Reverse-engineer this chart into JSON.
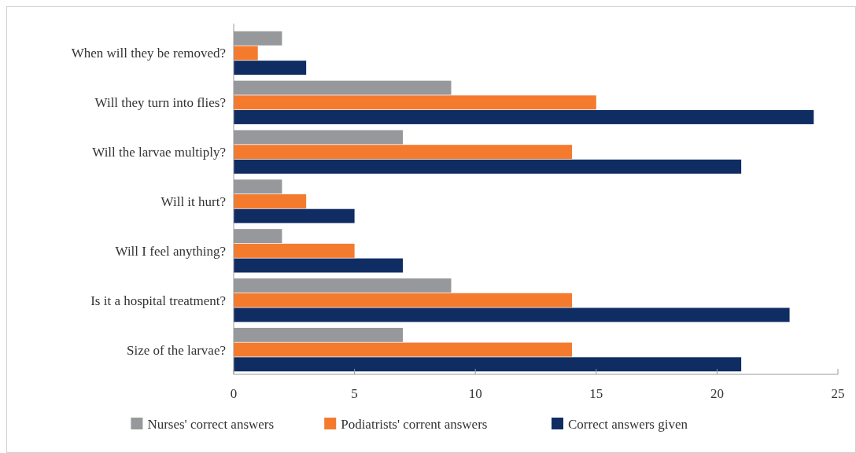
{
  "chart_data": {
    "type": "bar",
    "orientation": "horizontal",
    "categories": [
      "When will they be removed?",
      "Will they turn into flies?",
      "Will the larvae multiply?",
      "Will it hurt?",
      "Will I feel anything?",
      "Is it a hospital treatment?",
      "Size of the larvae?"
    ],
    "series": [
      {
        "name": "Nurses' correct answers",
        "color": "#97989c",
        "values": [
          2,
          9,
          7,
          2,
          2,
          9,
          7
        ]
      },
      {
        "name": "Podiatrists' corrent answers",
        "color": "#f47b2e",
        "values": [
          1,
          15,
          14,
          3,
          5,
          14,
          14
        ]
      },
      {
        "name": "Correct answers given",
        "color": "#0f2c63",
        "values": [
          3,
          24,
          21,
          5,
          7,
          23,
          21
        ]
      }
    ],
    "xlim": [
      0,
      25
    ],
    "xticks": [
      0,
      5,
      10,
      15,
      20,
      25
    ],
    "grid": false,
    "legend": "bottom"
  }
}
